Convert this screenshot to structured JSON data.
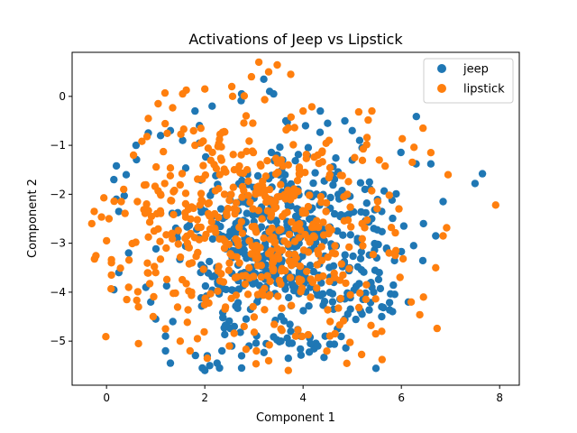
{
  "chart_data": {
    "type": "scatter",
    "title": "Activations of Jeep vs Lipstick",
    "xlabel": "Component 1",
    "ylabel": "Component 2",
    "xlim": [
      -0.7,
      8.4
    ],
    "ylim": [
      -5.9,
      0.9
    ],
    "xticks": [
      0,
      2,
      4,
      6,
      8
    ],
    "yticks": [
      0,
      -1,
      -2,
      -3,
      -4,
      -5
    ],
    "grid": false,
    "legend": "top-right",
    "n_points_estimate": 1000,
    "series": [
      {
        "name": "jeep",
        "color": "#1f77b4",
        "cluster": {
          "center": [
            3.7,
            -3.2
          ],
          "sx": 1.05,
          "sy": 1.0,
          "count": 500
        },
        "points": [
          [
            7.65,
            -1.58
          ],
          [
            7.5,
            -1.78
          ],
          [
            6.85,
            -2.15
          ],
          [
            6.7,
            -2.85
          ],
          [
            6.6,
            -1.38
          ],
          [
            6.3,
            -1.38
          ],
          [
            6.45,
            -2.6
          ],
          [
            6.25,
            -3.05
          ],
          [
            6.05,
            -2.65
          ],
          [
            5.7,
            -3.1
          ],
          [
            5.6,
            -2.35
          ],
          [
            5.5,
            -3.3
          ],
          [
            5.55,
            -3.6
          ],
          [
            5.4,
            -3.9
          ],
          [
            5.2,
            -4.45
          ],
          [
            5.6,
            -4.5
          ],
          [
            5.6,
            -4.3
          ],
          [
            5.35,
            -1.75
          ],
          [
            5.2,
            -1.05
          ],
          [
            5.0,
            -1.3
          ],
          [
            4.95,
            -4.05
          ],
          [
            4.85,
            -4.55
          ],
          [
            4.7,
            -4.75
          ],
          [
            4.45,
            -4.9
          ],
          [
            4.3,
            -5.1
          ],
          [
            4.15,
            -5.05
          ],
          [
            3.95,
            -4.9
          ],
          [
            3.7,
            -5.35
          ],
          [
            3.75,
            -4.8
          ],
          [
            3.55,
            -5.0
          ],
          [
            3.25,
            -5.05
          ],
          [
            2.9,
            -5.1
          ],
          [
            2.75,
            -5.3
          ],
          [
            2.55,
            -5.1
          ],
          [
            2.6,
            -4.7
          ],
          [
            2.35,
            -5.2
          ],
          [
            2.25,
            -5.45
          ],
          [
            2.1,
            -5.5
          ],
          [
            2.05,
            -5.3
          ],
          [
            1.95,
            -5.55
          ],
          [
            2.0,
            -5.6
          ],
          [
            2.3,
            -5.55
          ],
          [
            2.75,
            -5.55
          ],
          [
            1.3,
            -5.45
          ],
          [
            1.2,
            -5.2
          ],
          [
            1.2,
            -4.9
          ],
          [
            1.35,
            -4.6
          ],
          [
            1.0,
            -4.55
          ],
          [
            0.9,
            -4.2
          ],
          [
            0.8,
            -3.9
          ],
          [
            0.15,
            -3.95
          ],
          [
            0.25,
            -3.6
          ],
          [
            0.45,
            -3.2
          ],
          [
            0.25,
            -2.35
          ],
          [
            0.2,
            -2.1
          ],
          [
            0.15,
            -1.7
          ],
          [
            0.2,
            -1.42
          ],
          [
            0.4,
            -1.6
          ],
          [
            0.6,
            -1.0
          ],
          [
            0.85,
            -0.75
          ],
          [
            1.1,
            -0.8
          ],
          [
            1.3,
            -0.7
          ],
          [
            1.55,
            -0.9
          ],
          [
            1.8,
            -0.3
          ],
          [
            2.15,
            -0.2
          ],
          [
            2.75,
            0.05
          ],
          [
            3.2,
            0.35
          ],
          [
            3.4,
            0.05
          ],
          [
            3.65,
            -0.5
          ],
          [
            4.05,
            -0.6
          ],
          [
            4.35,
            -0.3
          ],
          [
            4.5,
            -0.55
          ],
          [
            4.85,
            -0.5
          ],
          [
            5.0,
            -0.7
          ],
          [
            5.15,
            -0.9
          ]
        ]
      },
      {
        "name": "lipstick",
        "color": "#ff7f0e",
        "cluster": {
          "center": [
            3.1,
            -2.6
          ],
          "sx": 1.35,
          "sy": 1.15,
          "count": 500
        },
        "points": [
          [
            7.92,
            -2.22
          ],
          [
            6.95,
            -1.6
          ],
          [
            6.85,
            -2.85
          ],
          [
            6.7,
            -3.5
          ],
          [
            6.6,
            -1.15
          ],
          [
            6.45,
            -4.1
          ],
          [
            6.2,
            -4.2
          ],
          [
            5.95,
            -2.3
          ],
          [
            5.75,
            -3.2
          ],
          [
            5.6,
            -4.8
          ],
          [
            5.55,
            -1.3
          ],
          [
            5.4,
            -0.3
          ],
          [
            5.05,
            -1.25
          ],
          [
            4.65,
            -4.85
          ],
          [
            4.55,
            -4.6
          ],
          [
            4.0,
            -0.3
          ],
          [
            3.55,
            -4.75
          ],
          [
            3.85,
            -4.9
          ],
          [
            3.3,
            -5.4
          ],
          [
            3.7,
            -5.6
          ],
          [
            3.75,
            0.45
          ],
          [
            3.1,
            0.7
          ],
          [
            3.3,
            0.5
          ],
          [
            2.95,
            0.4
          ],
          [
            2.55,
            0.2
          ],
          [
            2.0,
            0.15
          ],
          [
            1.55,
            0.05
          ],
          [
            1.05,
            -0.15
          ],
          [
            0.85,
            -0.45
          ],
          [
            0.55,
            -1.2
          ],
          [
            0.35,
            -1.9
          ],
          [
            0.3,
            -2.15
          ],
          [
            0.05,
            -2.5
          ],
          [
            -0.25,
            -2.35
          ],
          [
            -0.3,
            -2.6
          ],
          [
            0.0,
            -2.95
          ],
          [
            0.1,
            -3.4
          ],
          [
            0.1,
            -3.65
          ],
          [
            0.45,
            -3.9
          ],
          [
            0.65,
            -4.3
          ],
          [
            0.65,
            -5.05
          ],
          [
            0.95,
            -4.5
          ],
          [
            1.2,
            -4.75
          ],
          [
            1.5,
            -5.0
          ],
          [
            1.7,
            -5.2
          ],
          [
            1.85,
            -4.95
          ],
          [
            2.05,
            -5.35
          ],
          [
            2.5,
            -5.1
          ],
          [
            2.8,
            -4.7
          ],
          [
            3.05,
            -5.2
          ],
          [
            1.0,
            -3.6
          ],
          [
            1.1,
            -2.0
          ],
          [
            1.8,
            -1.0
          ],
          [
            2.6,
            -1.5
          ],
          [
            3.7,
            -1.4
          ],
          [
            4.9,
            -2.0
          ],
          [
            5.2,
            -2.6
          ],
          [
            4.6,
            -3.2
          ],
          [
            2.9,
            -3.5
          ],
          [
            2.2,
            -2.4
          ],
          [
            1.6,
            -2.9
          ],
          [
            3.4,
            -2.2
          ],
          [
            4.1,
            -2.9
          ],
          [
            4.3,
            -1.2
          ],
          [
            2.4,
            -3.1
          ]
        ]
      }
    ]
  }
}
